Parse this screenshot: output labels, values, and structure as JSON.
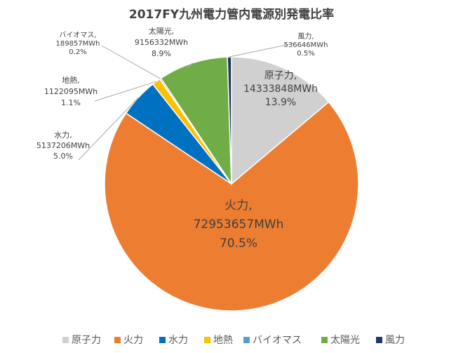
{
  "chart_data": {
    "type": "pie",
    "title": "2017FY九州電力管内電源別発電比率",
    "legend_position": "bottom",
    "slices": [
      {
        "name": "原子力",
        "value": 14333848,
        "value_label": "14333848MWh",
        "percent_label": "13.9%",
        "color": "#d0d0d0"
      },
      {
        "name": "火力",
        "value": 72953657,
        "value_label": "72953657MWh",
        "percent_label": "70.5%",
        "color": "#ed7d31"
      },
      {
        "name": "水力",
        "value": 5137206,
        "value_label": "5137206MWh",
        "percent_label": "5.0%",
        "color": "#0070c0"
      },
      {
        "name": "地熱",
        "value": 1122095,
        "value_label": "1122095MWh",
        "percent_label": "1.1%",
        "color": "#ffc000"
      },
      {
        "name": "バイオマス",
        "value": 189857,
        "value_label": "189857MWh",
        "percent_label": "0.2%",
        "color": "#5b9bd5"
      },
      {
        "name": "太陽光",
        "value": 9156332,
        "value_label": "9156332MWh",
        "percent_label": "8.9%",
        "color": "#70ad47"
      },
      {
        "name": "風力",
        "value": 536646,
        "value_label": "536646MWh",
        "percent_label": "0.5%",
        "color": "#203864"
      }
    ]
  }
}
